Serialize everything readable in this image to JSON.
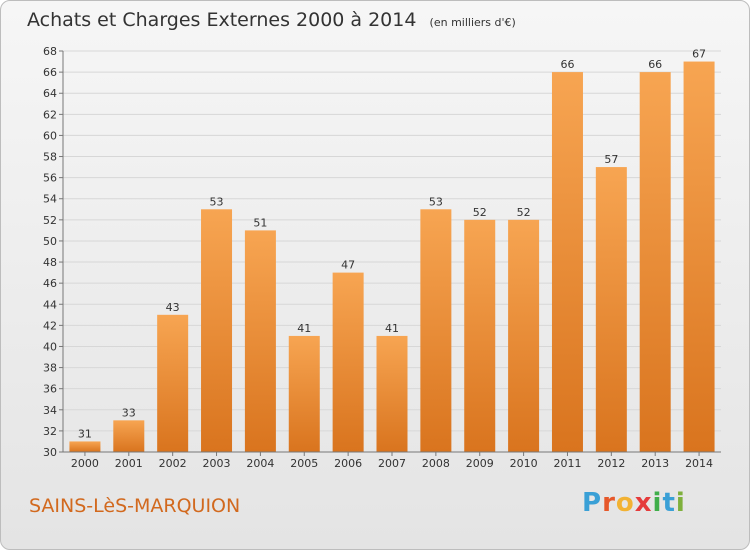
{
  "header": {
    "title": "Achats et Charges Externes 2000 à 2014",
    "subtitle": "(en milliers d'€)"
  },
  "footer": {
    "commune": "SAINS-LèS-MARQUION",
    "logo": [
      "P",
      "r",
      "o",
      "x",
      "i",
      "t",
      "i"
    ]
  },
  "colors": {
    "bar_top": "#f7a552",
    "bar_bottom": "#d9741e",
    "grid": "#d7d7d7",
    "axis": "#777777"
  },
  "chart_data": {
    "type": "bar",
    "title": "Achats et Charges Externes 2000 à 2014",
    "subtitle": "(en milliers d'€)",
    "categories": [
      "2000",
      "2001",
      "2002",
      "2003",
      "2004",
      "2005",
      "2006",
      "2007",
      "2008",
      "2009",
      "2010",
      "2011",
      "2012",
      "2013",
      "2014"
    ],
    "values": [
      31,
      33,
      43,
      53,
      51,
      41,
      47,
      41,
      53,
      52,
      52,
      66,
      57,
      66,
      67
    ],
    "ylim": [
      30,
      68
    ],
    "yticks": [
      30,
      32,
      34,
      36,
      38,
      40,
      42,
      44,
      46,
      48,
      50,
      52,
      54,
      56,
      58,
      60,
      62,
      64,
      66,
      68
    ],
    "grid": true,
    "data_labels": true
  }
}
